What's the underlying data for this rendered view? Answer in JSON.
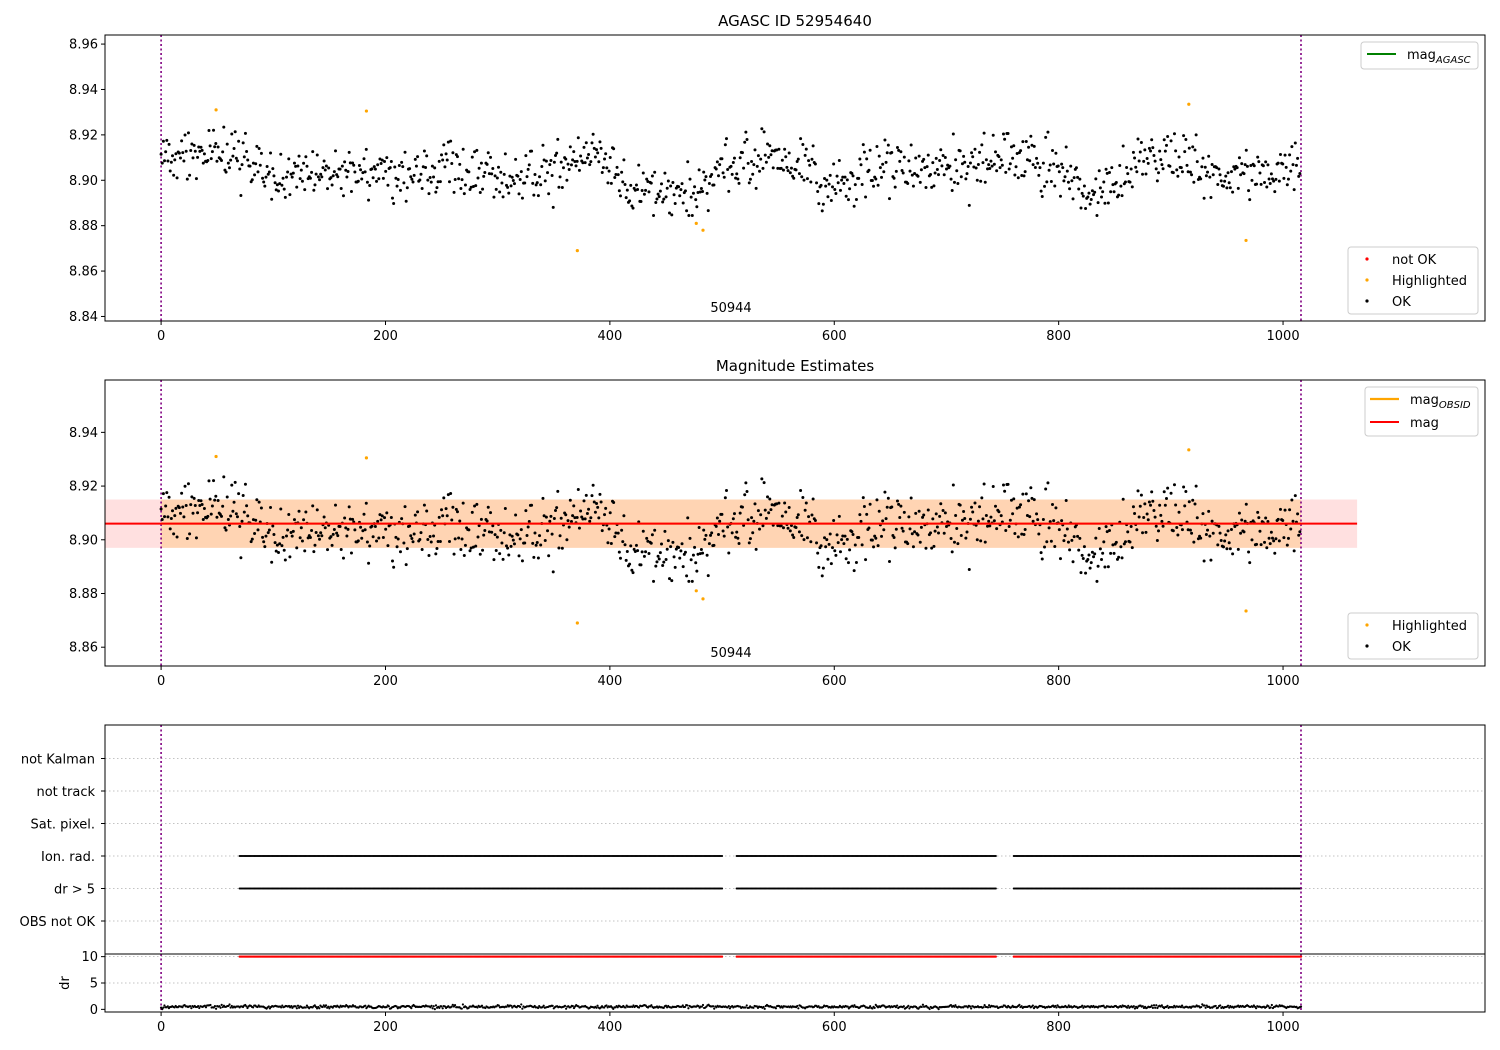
{
  "chart_data": [
    {
      "type": "scatter",
      "title": "AGASC ID 52954640",
      "xlim": [
        -50,
        1180
      ],
      "ylim": [
        8.838,
        8.964
      ],
      "x_ticks": [
        0,
        200,
        400,
        600,
        800,
        1000
      ],
      "y_ticks": [
        8.84,
        8.86,
        8.88,
        8.9,
        8.92,
        8.94,
        8.96
      ],
      "x_tick_labels": [
        "0",
        "200",
        "400",
        "600",
        "800",
        "1000"
      ],
      "y_tick_labels": [
        "8.84",
        "8.86",
        "8.88",
        "8.90",
        "8.92",
        "8.94",
        "8.96"
      ],
      "obs_boundaries": [
        0,
        1016
      ],
      "obs_label": "50944",
      "series": [
        {
          "name": "mag_AGASC",
          "kind": "line",
          "color": "#008000",
          "values": []
        },
        {
          "name": "not OK",
          "color": "#ff0000",
          "points": []
        },
        {
          "name": "Highlighted",
          "color": "#ffa500",
          "points": [
            [
              49,
              8.931
            ],
            [
              183,
              8.9305
            ],
            [
              371,
              8.869
            ],
            [
              477,
              8.881
            ],
            [
              483,
              8.878
            ],
            [
              916,
              8.9335
            ],
            [
              967,
              8.8735
            ]
          ]
        },
        {
          "name": "OK",
          "color": "#000000",
          "trend": [
            [
              0,
              8.91
            ],
            [
              40,
              8.914
            ],
            [
              80,
              8.91
            ],
            [
              110,
              8.898
            ],
            [
              150,
              8.905
            ],
            [
              200,
              8.903
            ],
            [
              260,
              8.905
            ],
            [
              300,
              8.9
            ],
            [
              340,
              8.903
            ],
            [
              390,
              8.912
            ],
            [
              420,
              8.895
            ],
            [
              460,
              8.894
            ],
            [
              480,
              8.897
            ],
            [
              520,
              8.91
            ],
            [
              560,
              8.91
            ],
            [
              590,
              8.897
            ],
            [
              640,
              8.904
            ],
            [
              700,
              8.905
            ],
            [
              760,
              8.91
            ],
            [
              800,
              8.905
            ],
            [
              830,
              8.893
            ],
            [
              880,
              8.91
            ],
            [
              920,
              8.909
            ],
            [
              960,
              8.9
            ],
            [
              1000,
              8.905
            ],
            [
              1016,
              8.906
            ]
          ],
          "count": 1000,
          "spread": 0.0075
        }
      ],
      "legends": [
        {
          "position": "top-right",
          "items": [
            {
              "label": "mag",
              "sub": "AGASC",
              "symbol": "line",
              "color": "#008000"
            }
          ]
        },
        {
          "position": "lower-right",
          "items": [
            {
              "label": "not OK",
              "symbol": "dot",
              "color": "#ff0000"
            },
            {
              "label": "Highlighted",
              "symbol": "dot",
              "color": "#ffa500"
            },
            {
              "label": "OK",
              "symbol": "dot",
              "color": "#000000"
            }
          ]
        }
      ]
    },
    {
      "type": "scatter",
      "title": "Magnitude Estimates",
      "xlim": [
        -50,
        1180
      ],
      "ylim": [
        8.853,
        8.9595
      ],
      "x_ticks": [
        0,
        200,
        400,
        600,
        800,
        1000
      ],
      "y_ticks": [
        8.86,
        8.88,
        8.9,
        8.92,
        8.94
      ],
      "x_tick_labels": [
        "0",
        "200",
        "400",
        "600",
        "800",
        "1000"
      ],
      "y_tick_labels": [
        "8.86",
        "8.88",
        "8.90",
        "8.92",
        "8.94"
      ],
      "obs_boundaries": [
        0,
        1016
      ],
      "obs_label": "50944",
      "mag_obsid": {
        "value": 8.906,
        "low": 8.897,
        "high": 8.915,
        "x_range": [
          0,
          1016
        ],
        "color": "#ffa500"
      },
      "mag": {
        "value": 8.906,
        "low": 8.897,
        "high": 8.915,
        "x_range": [
          -50,
          1066
        ],
        "color": "#ff0000"
      },
      "series": [
        {
          "name": "Highlighted",
          "color": "#ffa500",
          "points": [
            [
              49,
              8.931
            ],
            [
              183,
              8.9305
            ],
            [
              371,
              8.869
            ],
            [
              477,
              8.881
            ],
            [
              483,
              8.878
            ],
            [
              916,
              8.9335
            ],
            [
              967,
              8.8735
            ]
          ]
        },
        {
          "name": "OK",
          "color": "#000000",
          "same_as_panel": 0
        }
      ],
      "legends": [
        {
          "position": "top-right",
          "items": [
            {
              "label": "mag",
              "sub": "OBSID",
              "symbol": "line",
              "color": "#ffa500"
            },
            {
              "label": "mag",
              "sub": "",
              "symbol": "line",
              "color": "#ff0000"
            }
          ]
        },
        {
          "position": "lower-right",
          "items": [
            {
              "label": "Highlighted",
              "symbol": "dot",
              "color": "#ffa500"
            },
            {
              "label": "OK",
              "symbol": "dot",
              "color": "#000000"
            }
          ]
        }
      ]
    },
    {
      "type": "scatter",
      "xlim": [
        -50,
        1180
      ],
      "categories": [
        "not Kalman",
        "not track",
        "Sat. pixel.",
        "Ion. rad.",
        "dr > 5",
        "OBS not OK"
      ],
      "flag_segments": {
        "Ion. rad.": [
          [
            70,
            500
          ],
          [
            513,
            744
          ],
          [
            760,
            1016
          ]
        ],
        "dr > 5": [
          [
            70,
            500
          ],
          [
            513,
            744
          ],
          [
            760,
            1016
          ]
        ]
      },
      "obs_boundaries": [
        0,
        1016
      ]
    },
    {
      "type": "scatter",
      "xlim": [
        -50,
        1180
      ],
      "ylim": [
        -0.5,
        10.5
      ],
      "ylabel": "dr",
      "y_ticks": [
        0,
        5,
        10
      ],
      "y_tick_labels": [
        "0",
        "5",
        "10"
      ],
      "x_ticks": [
        0,
        200,
        400,
        600,
        800,
        1000
      ],
      "x_tick_labels": [
        "0",
        "200",
        "400",
        "600",
        "800",
        "1000"
      ],
      "clipped_at": 10,
      "clipped_segments": [
        [
          70,
          500
        ],
        [
          513,
          744
        ],
        [
          760,
          1016
        ]
      ],
      "clipped_color": "#ff0000",
      "low_dr_typical": 0.5,
      "obs_boundaries": [
        0,
        1016
      ]
    }
  ]
}
